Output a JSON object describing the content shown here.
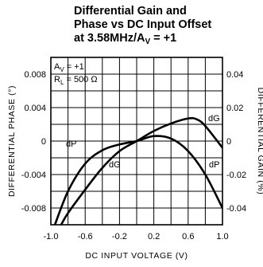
{
  "title": {
    "line1": "Differential Gain and",
    "line2": "Phase vs DC Input Offset",
    "line3_prefix": "at 3.58MHz/A",
    "line3_sub": "V",
    "line3_suffix": " = +1"
  },
  "annotations": {
    "av_prefix": "A",
    "av_sub": "V",
    "av_suffix": " = +1",
    "rl_prefix": "R",
    "rl_sub": "L",
    "rl_suffix": " = 500 Ω"
  },
  "chart_data": {
    "type": "line",
    "xlabel": "DC INPUT VOLTAGE (V)",
    "ylabel_left": "DIFFERENTIAL PHASE (°)",
    "ylabel_right": "DIFFERENTIAL GAIN (%)",
    "xlim": [
      -1.0,
      1.0
    ],
    "ylim_left": [
      -0.01,
      0.01
    ],
    "ylim_right": [
      -0.05,
      0.05
    ],
    "x_ticks": [
      "-1.0",
      "-0.6",
      "-0.2",
      "0.2",
      "0.6",
      "1.0"
    ],
    "y_ticks_left": [
      "-0.008",
      "-0.004",
      "0",
      "0.004",
      "0.008"
    ],
    "y_ticks_right": [
      "-0.04",
      "-0.02",
      "0",
      "0.02",
      "0.04"
    ],
    "grid": true,
    "series": [
      {
        "name": "dP",
        "axis": "left",
        "x": [
          -0.96,
          -0.8,
          -0.6,
          -0.4,
          -0.2,
          0.0,
          0.2,
          0.4,
          0.6,
          0.8,
          1.0
        ],
        "y": [
          -0.0102,
          -0.006,
          -0.0027,
          -0.0011,
          -0.0004,
          0.0,
          0.0006,
          0.0003,
          -0.0012,
          -0.004,
          -0.008
        ]
      },
      {
        "name": "dG",
        "axis": "right",
        "x": [
          -0.88,
          -0.8,
          -0.6,
          -0.4,
          -0.2,
          0.0,
          0.2,
          0.4,
          0.6,
          0.7,
          0.8,
          1.0
        ],
        "y": [
          -0.05,
          -0.043,
          -0.029,
          -0.016,
          -0.006,
          0.0,
          0.006,
          0.0105,
          0.0135,
          0.013,
          0.009,
          -0.004
        ]
      }
    ]
  }
}
